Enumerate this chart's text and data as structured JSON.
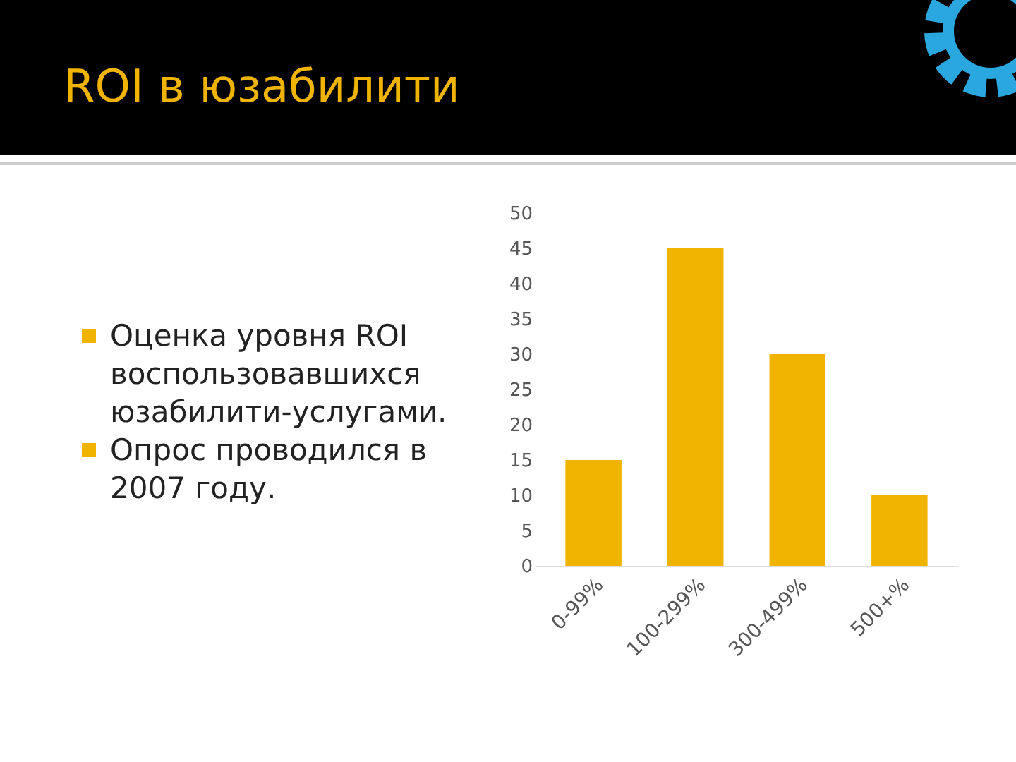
{
  "chart_data": {
    "type": "bar",
    "title": "ROI в юзабилити",
    "annotations": [
      "Оценка уровня ROI воспользовавшихся юзабилити-услугами.",
      "Опрос проводился в 2007 году."
    ],
    "categories": [
      "0-99%",
      "100-299%",
      "300-499%",
      "500+%"
    ],
    "values": [
      15,
      45,
      30,
      10
    ],
    "color": "#f0b400",
    "ylim": [
      0,
      50
    ],
    "yticks": [
      0,
      5,
      10,
      15,
      20,
      25,
      30,
      35,
      40,
      45,
      50
    ],
    "grid": false
  }
}
